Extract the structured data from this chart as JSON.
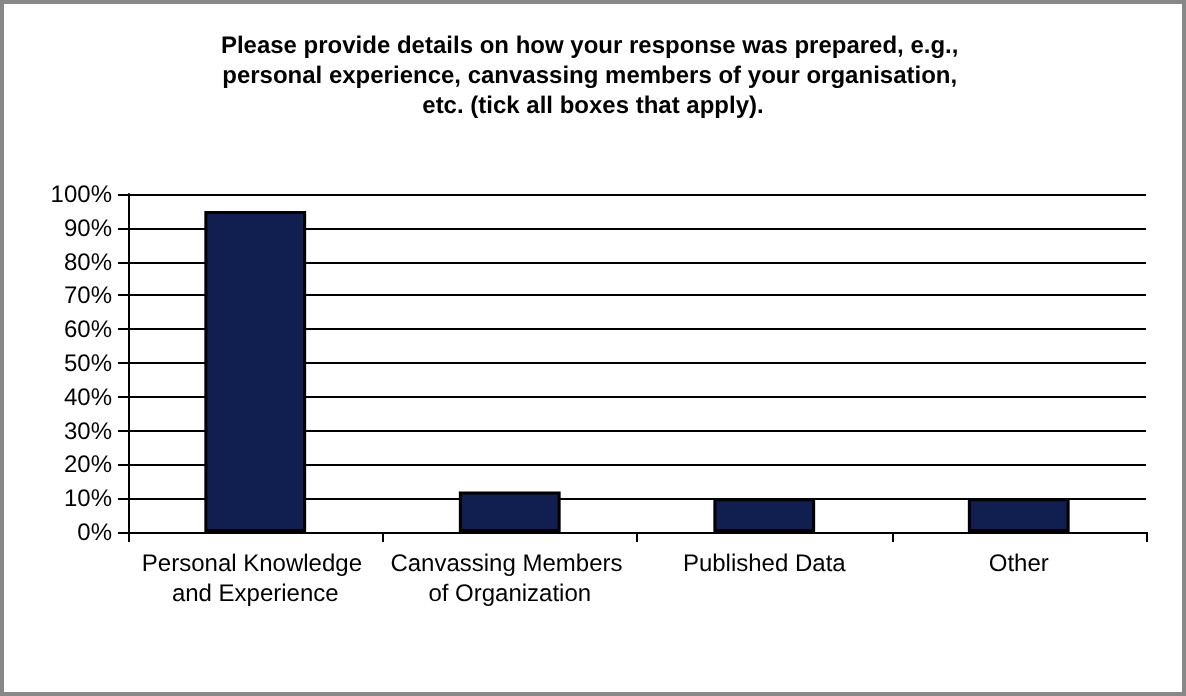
{
  "chart_data": {
    "type": "bar",
    "title": "Please provide details on how your response was prepared, e.g., personal experience, canvassing members of your organisation, etc. (tick all boxes that apply).",
    "categories": [
      "Personal Knowledge and Experience",
      "Canvassing Members of Organization",
      "Published Data",
      "Other"
    ],
    "values": [
      95,
      12,
      10,
      10
    ],
    "color": "#101e50",
    "ylim": [
      0,
      100
    ],
    "yticks": [
      {
        "value": 0,
        "label": "0%"
      },
      {
        "value": 10,
        "label": "10%"
      },
      {
        "value": 20,
        "label": "20%"
      },
      {
        "value": 30,
        "label": "30%"
      },
      {
        "value": 40,
        "label": "40%"
      },
      {
        "value": 50,
        "label": "50%"
      },
      {
        "value": 60,
        "label": "60%"
      },
      {
        "value": 70,
        "label": "70%"
      },
      {
        "value": 80,
        "label": "80%"
      },
      {
        "value": 90,
        "label": "90%"
      },
      {
        "value": 100,
        "label": "100%"
      }
    ],
    "grid": "y"
  }
}
